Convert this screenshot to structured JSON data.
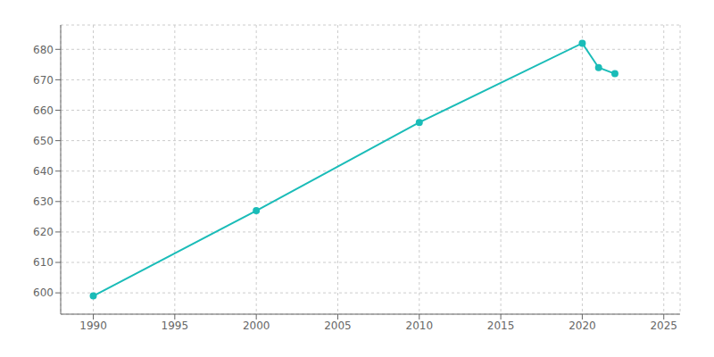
{
  "chart_data": {
    "type": "line",
    "x": [
      1990,
      2000,
      2010,
      2020,
      2021,
      2022
    ],
    "values": [
      599,
      627,
      656,
      682,
      674,
      672
    ],
    "color": "#1ABCB8",
    "marker": "circle",
    "xlim": [
      1988,
      2026
    ],
    "ylim": [
      593,
      688
    ],
    "xticks": [
      1990,
      1995,
      2000,
      2005,
      2010,
      2015,
      2020,
      2025
    ],
    "yticks": [
      600,
      610,
      620,
      630,
      640,
      650,
      660,
      670,
      680
    ],
    "grid": true
  }
}
